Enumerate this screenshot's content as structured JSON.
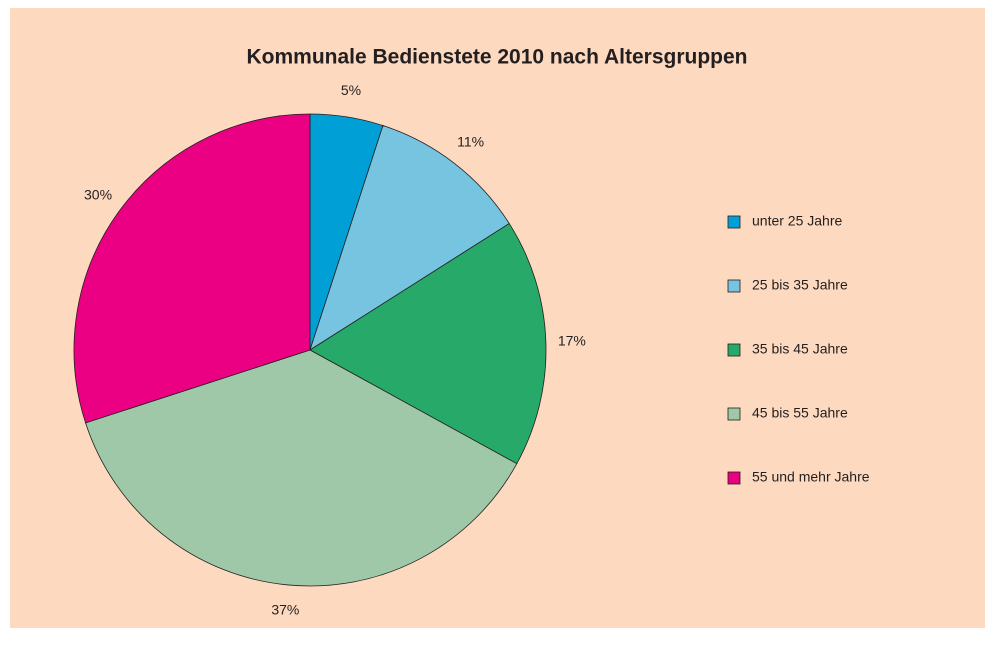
{
  "chart_data": {
    "type": "pie",
    "title": "Kommunale Bedienstete 2010 nach Altersgruppen",
    "categories": [
      "unter 25 Jahre",
      "25 bis 35 Jahre",
      "35 bis 45 Jahre",
      "45 bis 55 Jahre",
      "55 und mehr Jahre"
    ],
    "values": [
      5,
      11,
      17,
      37,
      30
    ],
    "value_labels": [
      "5%",
      "11%",
      "17%",
      "37%",
      "30%"
    ],
    "colors": [
      "#00a0d6",
      "#76c4e0",
      "#27a96a",
      "#9fc8a8",
      "#ec0083"
    ],
    "legend": "right"
  }
}
